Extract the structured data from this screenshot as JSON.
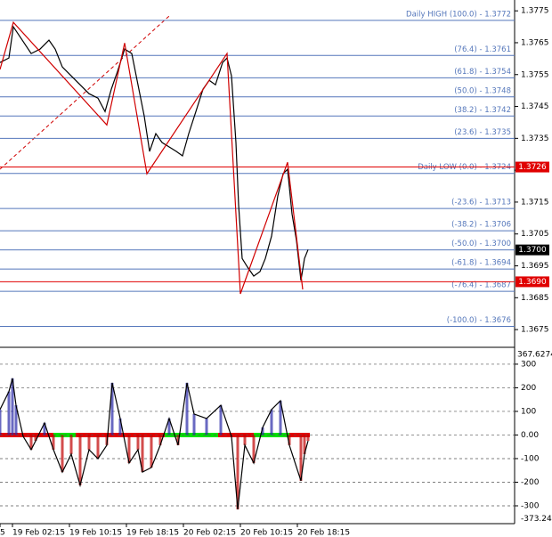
{
  "chart_data": [
    {
      "type": "line",
      "xlim": [
        0.5,
        72.75
      ],
      "ylim": [
        1.367,
        1.37784
      ],
      "yticks": [
        1.3775,
        1.3765,
        1.3755,
        1.3745,
        1.3735,
        1.3725,
        1.3715,
        1.3705,
        1.3695,
        1.3685,
        1.3675
      ],
      "series": [
        {
          "color": "#000000",
          "x": [
            0.5,
            1.75,
            2.375,
            3.625,
            4.875,
            6.125,
            7.375,
            8.25,
            9.25,
            10.5,
            11.75,
            13,
            14.25,
            15.25,
            16.125,
            17,
            18,
            19,
            19.875,
            20.75,
            21.5,
            22.375,
            23.25,
            24.25,
            25.25,
            26.125,
            27,
            28,
            29,
            29.875,
            30.75,
            31.75,
            32.375,
            33,
            33.625,
            34,
            34.5,
            35.25,
            36.125,
            37,
            37.75,
            38.625,
            39.5,
            40.25,
            40.875,
            41.5,
            42.125,
            42.75,
            43.25,
            43.75
          ],
          "values": [
            1.37588,
            1.37602,
            1.377,
            1.37658,
            1.37616,
            1.3763,
            1.37658,
            1.3763,
            1.37574,
            1.37546,
            1.37518,
            1.3749,
            1.37476,
            1.37434,
            1.37504,
            1.3756,
            1.3763,
            1.37616,
            1.37518,
            1.3742,
            1.37309,
            1.37365,
            1.37337,
            1.37323,
            1.37309,
            1.37295,
            1.37365,
            1.37434,
            1.37504,
            1.37532,
            1.37518,
            1.37588,
            1.37602,
            1.37546,
            1.37337,
            1.37141,
            1.36973,
            1.36946,
            1.36918,
            1.36932,
            1.36973,
            1.37043,
            1.37169,
            1.37239,
            1.37253,
            1.37113,
            1.37029,
            1.36904,
            1.36973,
            1.37001
          ]
        },
        {
          "color": "#d00000",
          "x": [
            0.5,
            2.375,
            15.5,
            18,
            21.125,
            32.375,
            34.25,
            40.875,
            43
          ],
          "values": [
            1.37566,
            1.37714,
            1.37392,
            1.37649,
            1.37239,
            1.37616,
            1.36862,
            1.37275,
            1.36876
          ]
        }
      ],
      "levels": {
        "color": "#5577bb",
        "values": [
          1.3772,
          1.3761,
          1.3754,
          1.3748,
          1.3742,
          1.3735,
          1.3724,
          1.3713,
          1.3706,
          1.37,
          1.3694,
          1.3687,
          1.3676
        ],
        "value_labels": [
          "Daily HIGH (100.0) - 1.3772",
          "(76.4) - 1.3761",
          "(61.8) - 1.3754",
          "(50.0) - 1.3748",
          "(38.2) - 1.3742",
          "(23.6) - 1.3735",
          "Daily LOW (0.0) - 1.3724",
          "(-23.6) - 1.3713",
          "(-38.2) - 1.3706",
          "(-50.0) - 1.3700",
          "(-61.8) - 1.3694",
          "(-76.4) - 1.3687",
          "(-100.0) - 1.3676"
        ]
      },
      "price_labels": {
        "values": [
          1.3726,
          1.37,
          1.369
        ],
        "value_labels": [
          "1.3726",
          "1.3700",
          "1.3690"
        ],
        "colors": [
          "#e00000",
          "#000000",
          "#e00000"
        ]
      }
    },
    {
      "type": "bar",
      "xlim": [
        0.5,
        72.75
      ],
      "ylim": [
        -373.24,
        367.6274
      ],
      "yticks": [
        300,
        200,
        100,
        {
          "value": 0,
          "label": "0.00"
        },
        -100,
        -200,
        -300
      ],
      "xticks": [
        {
          "value": 0.5,
          "label": "5"
        },
        {
          "value": 2.25,
          "label": "19 Feb 02:15"
        },
        {
          "value": 10.25,
          "label": "19 Feb 10:15"
        },
        {
          "value": 18.25,
          "label": "19 Feb 18:15"
        },
        {
          "value": 26.25,
          "label": "20 Feb 02:15"
        },
        {
          "value": 34.25,
          "label": "20 Feb 10:15"
        },
        {
          "value": 42.25,
          "label": "20 Feb 18:15"
        }
      ],
      "colors": {
        "positive": "#2a2aa8",
        "negative": "#c00000"
      },
      "series": [
        {
          "color": "#000000",
          "x": [
            0.5,
            1.75,
            2.25,
            2.75,
            3.75,
            4.875,
            5.5,
            6.75,
            8,
            9.25,
            10.5,
            11.75,
            13,
            14.25,
            15.5,
            16.25,
            17.375,
            18.625,
            19.875,
            20.5,
            21.75,
            23,
            24.25,
            25.5,
            26.75,
            27.75,
            29.5,
            31.5,
            33,
            33.875,
            34.875,
            36.125,
            37.375,
            38.625,
            39.875,
            41.125,
            42.75,
            43.25,
            43.75
          ],
          "values": [
            108,
            184,
            240,
            126,
            -6,
            -62,
            -25,
            51,
            -62,
            -157,
            -81,
            -213,
            -62,
            -100,
            -43,
            221,
            70,
            -119,
            -62,
            -157,
            -138,
            -43,
            70,
            -43,
            221,
            89,
            70,
            126,
            -6,
            -315,
            -43,
            -119,
            32,
            108,
            145,
            -43,
            -194,
            -81,
            -25
          ]
        }
      ]
    }
  ]
}
